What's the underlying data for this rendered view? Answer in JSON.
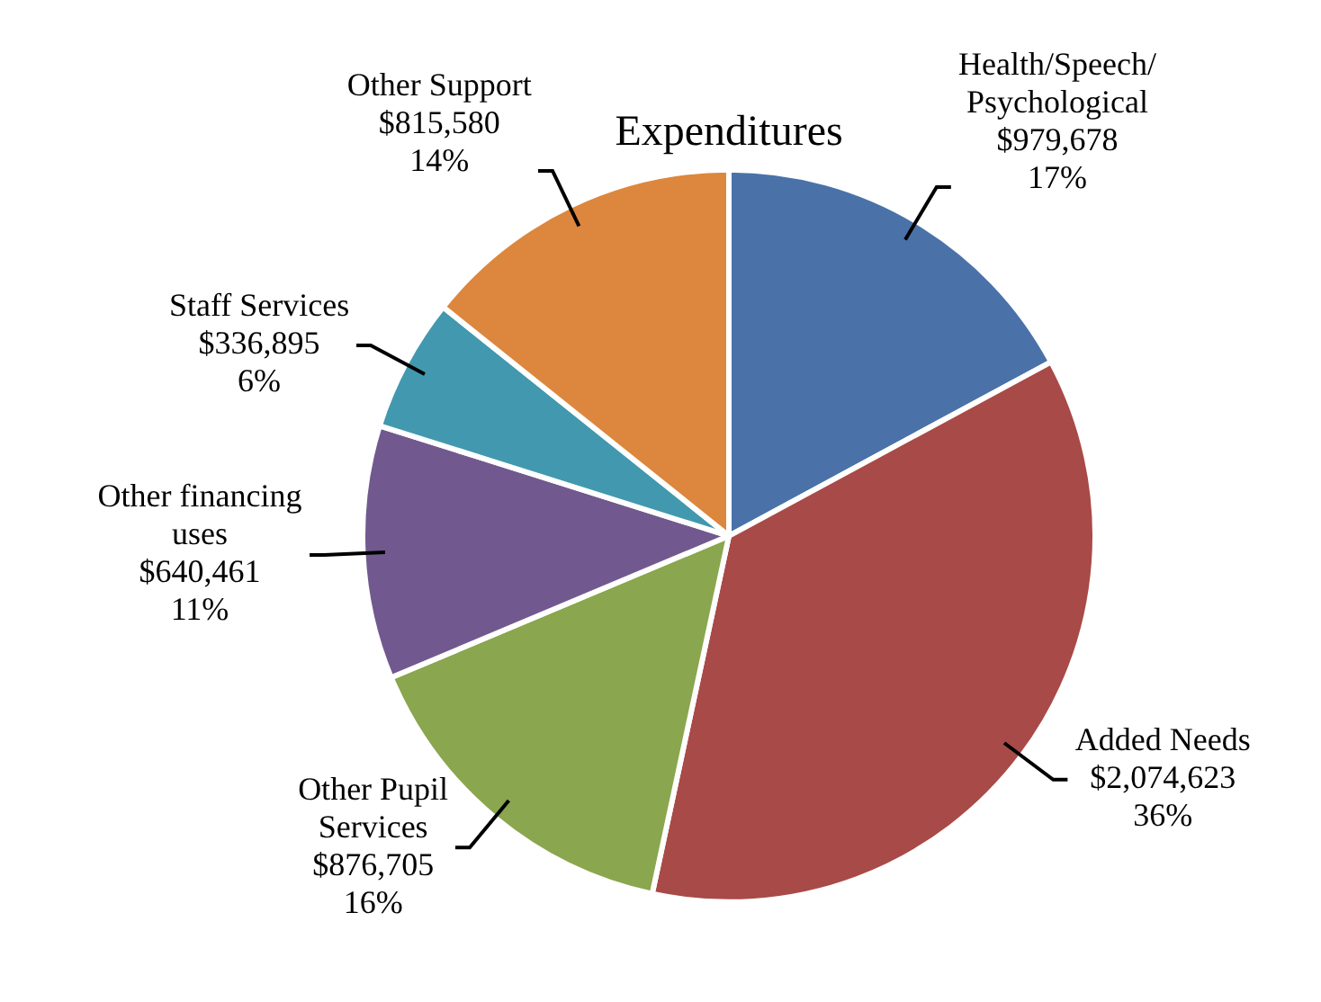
{
  "chart_data": {
    "type": "pie",
    "title": "Expenditures",
    "categories": [
      "Health/Speech/Psychological",
      "Added Needs",
      "Other Pupil Services",
      "Other financing uses",
      "Staff Services",
      "Other Support"
    ],
    "values": [
      979678,
      2074623,
      876705,
      640461,
      336895,
      815580
    ],
    "colors": [
      "#4a72a8",
      "#a84a47",
      "#8aa64e",
      "#71598f",
      "#4299af",
      "#dc873d"
    ],
    "value_labels": [
      "$979,678\n17%",
      "$2,074,623\n36%",
      "$876,705\n16%",
      "$640,461\n11%",
      "$336,895\n6%",
      "$815,580\n14%"
    ],
    "legend": false
  }
}
